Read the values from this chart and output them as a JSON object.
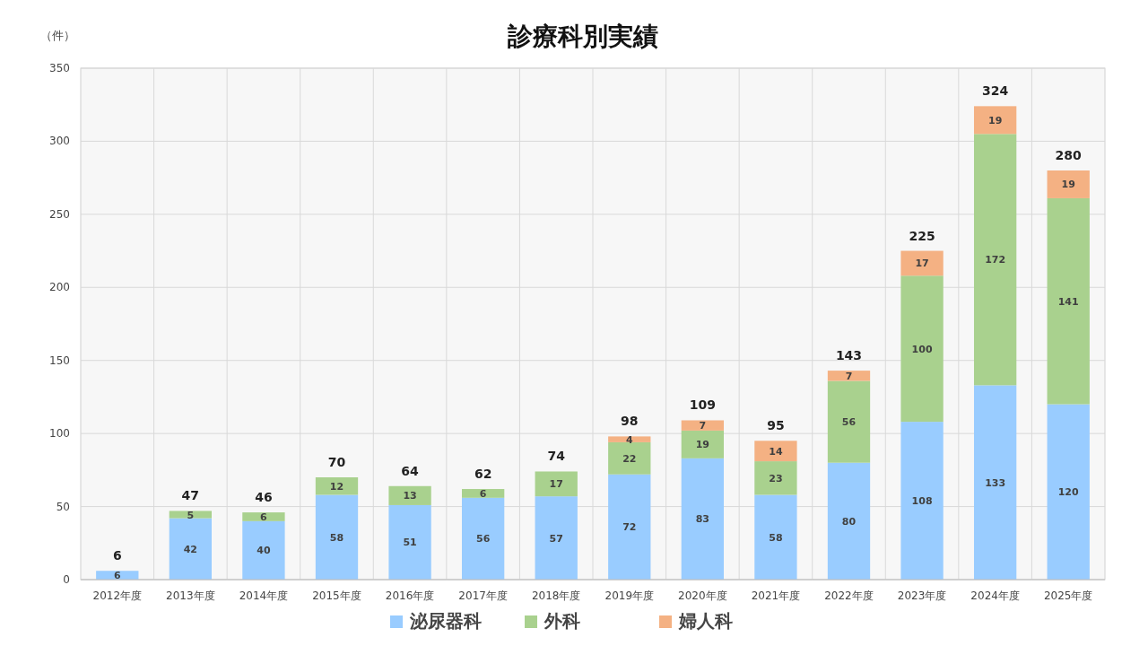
{
  "chart_data": {
    "type": "bar",
    "title": "診療科別実績",
    "ylabel": "（件）",
    "stacked": true,
    "categories": [
      "2012年度",
      "2013年度",
      "2014年度",
      "2015年度",
      "2016年度",
      "2017年度",
      "2018年度",
      "2019年度",
      "2020年度",
      "2021年度",
      "2022年度",
      "2023年度",
      "2024年度",
      "2025年度"
    ],
    "series": [
      {
        "name": "泌尿器科",
        "color": "#99ccff",
        "values": [
          6,
          42,
          40,
          58,
          51,
          56,
          57,
          72,
          83,
          58,
          80,
          108,
          133,
          120
        ]
      },
      {
        "name": "外科",
        "color": "#a9d18e",
        "values": [
          null,
          5,
          6,
          12,
          13,
          6,
          17,
          22,
          19,
          23,
          56,
          100,
          172,
          141
        ]
      },
      {
        "name": "婦人科",
        "color": "#f4b183",
        "values": [
          null,
          null,
          null,
          null,
          null,
          null,
          null,
          4,
          7,
          14,
          7,
          17,
          19,
          19
        ]
      }
    ],
    "totals": [
      "6",
      "47",
      "46",
      "70",
      "64",
      "62",
      "74",
      "98",
      "109",
      "95",
      "143",
      "225",
      "324",
      "280"
    ],
    "data_labels": true,
    "ylim": [
      0,
      350
    ],
    "yticks": [
      0,
      50,
      100,
      150,
      200,
      250,
      300,
      350
    ],
    "grid": true,
    "legend": "bottom"
  }
}
